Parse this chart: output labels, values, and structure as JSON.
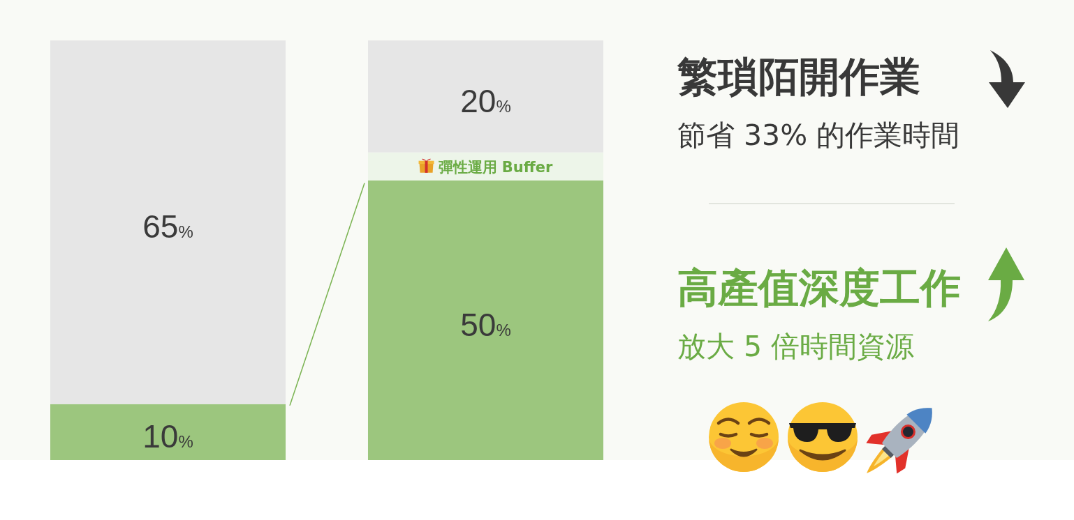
{
  "chart_data": {
    "type": "bar",
    "stacked": true,
    "categories": [
      null,
      null
    ],
    "series": [
      {
        "color": "#9cc67e",
        "values": [
          10,
          50
        ],
        "value_labels": [
          "10%",
          "50%"
        ]
      },
      {
        "name": "彈性運用 Buffer",
        "color": "#edf5e9",
        "values": [
          null,
          5
        ]
      },
      {
        "color": "#e6e6e6",
        "values": [
          65,
          20
        ],
        "value_labels": [
          "65%",
          "20%"
        ]
      }
    ],
    "annotations": [
      "繁瑣陌開作業",
      "節省 33% 的作業時間",
      "高產值深度工作",
      "放大 5 倍時間資源"
    ]
  }
}
